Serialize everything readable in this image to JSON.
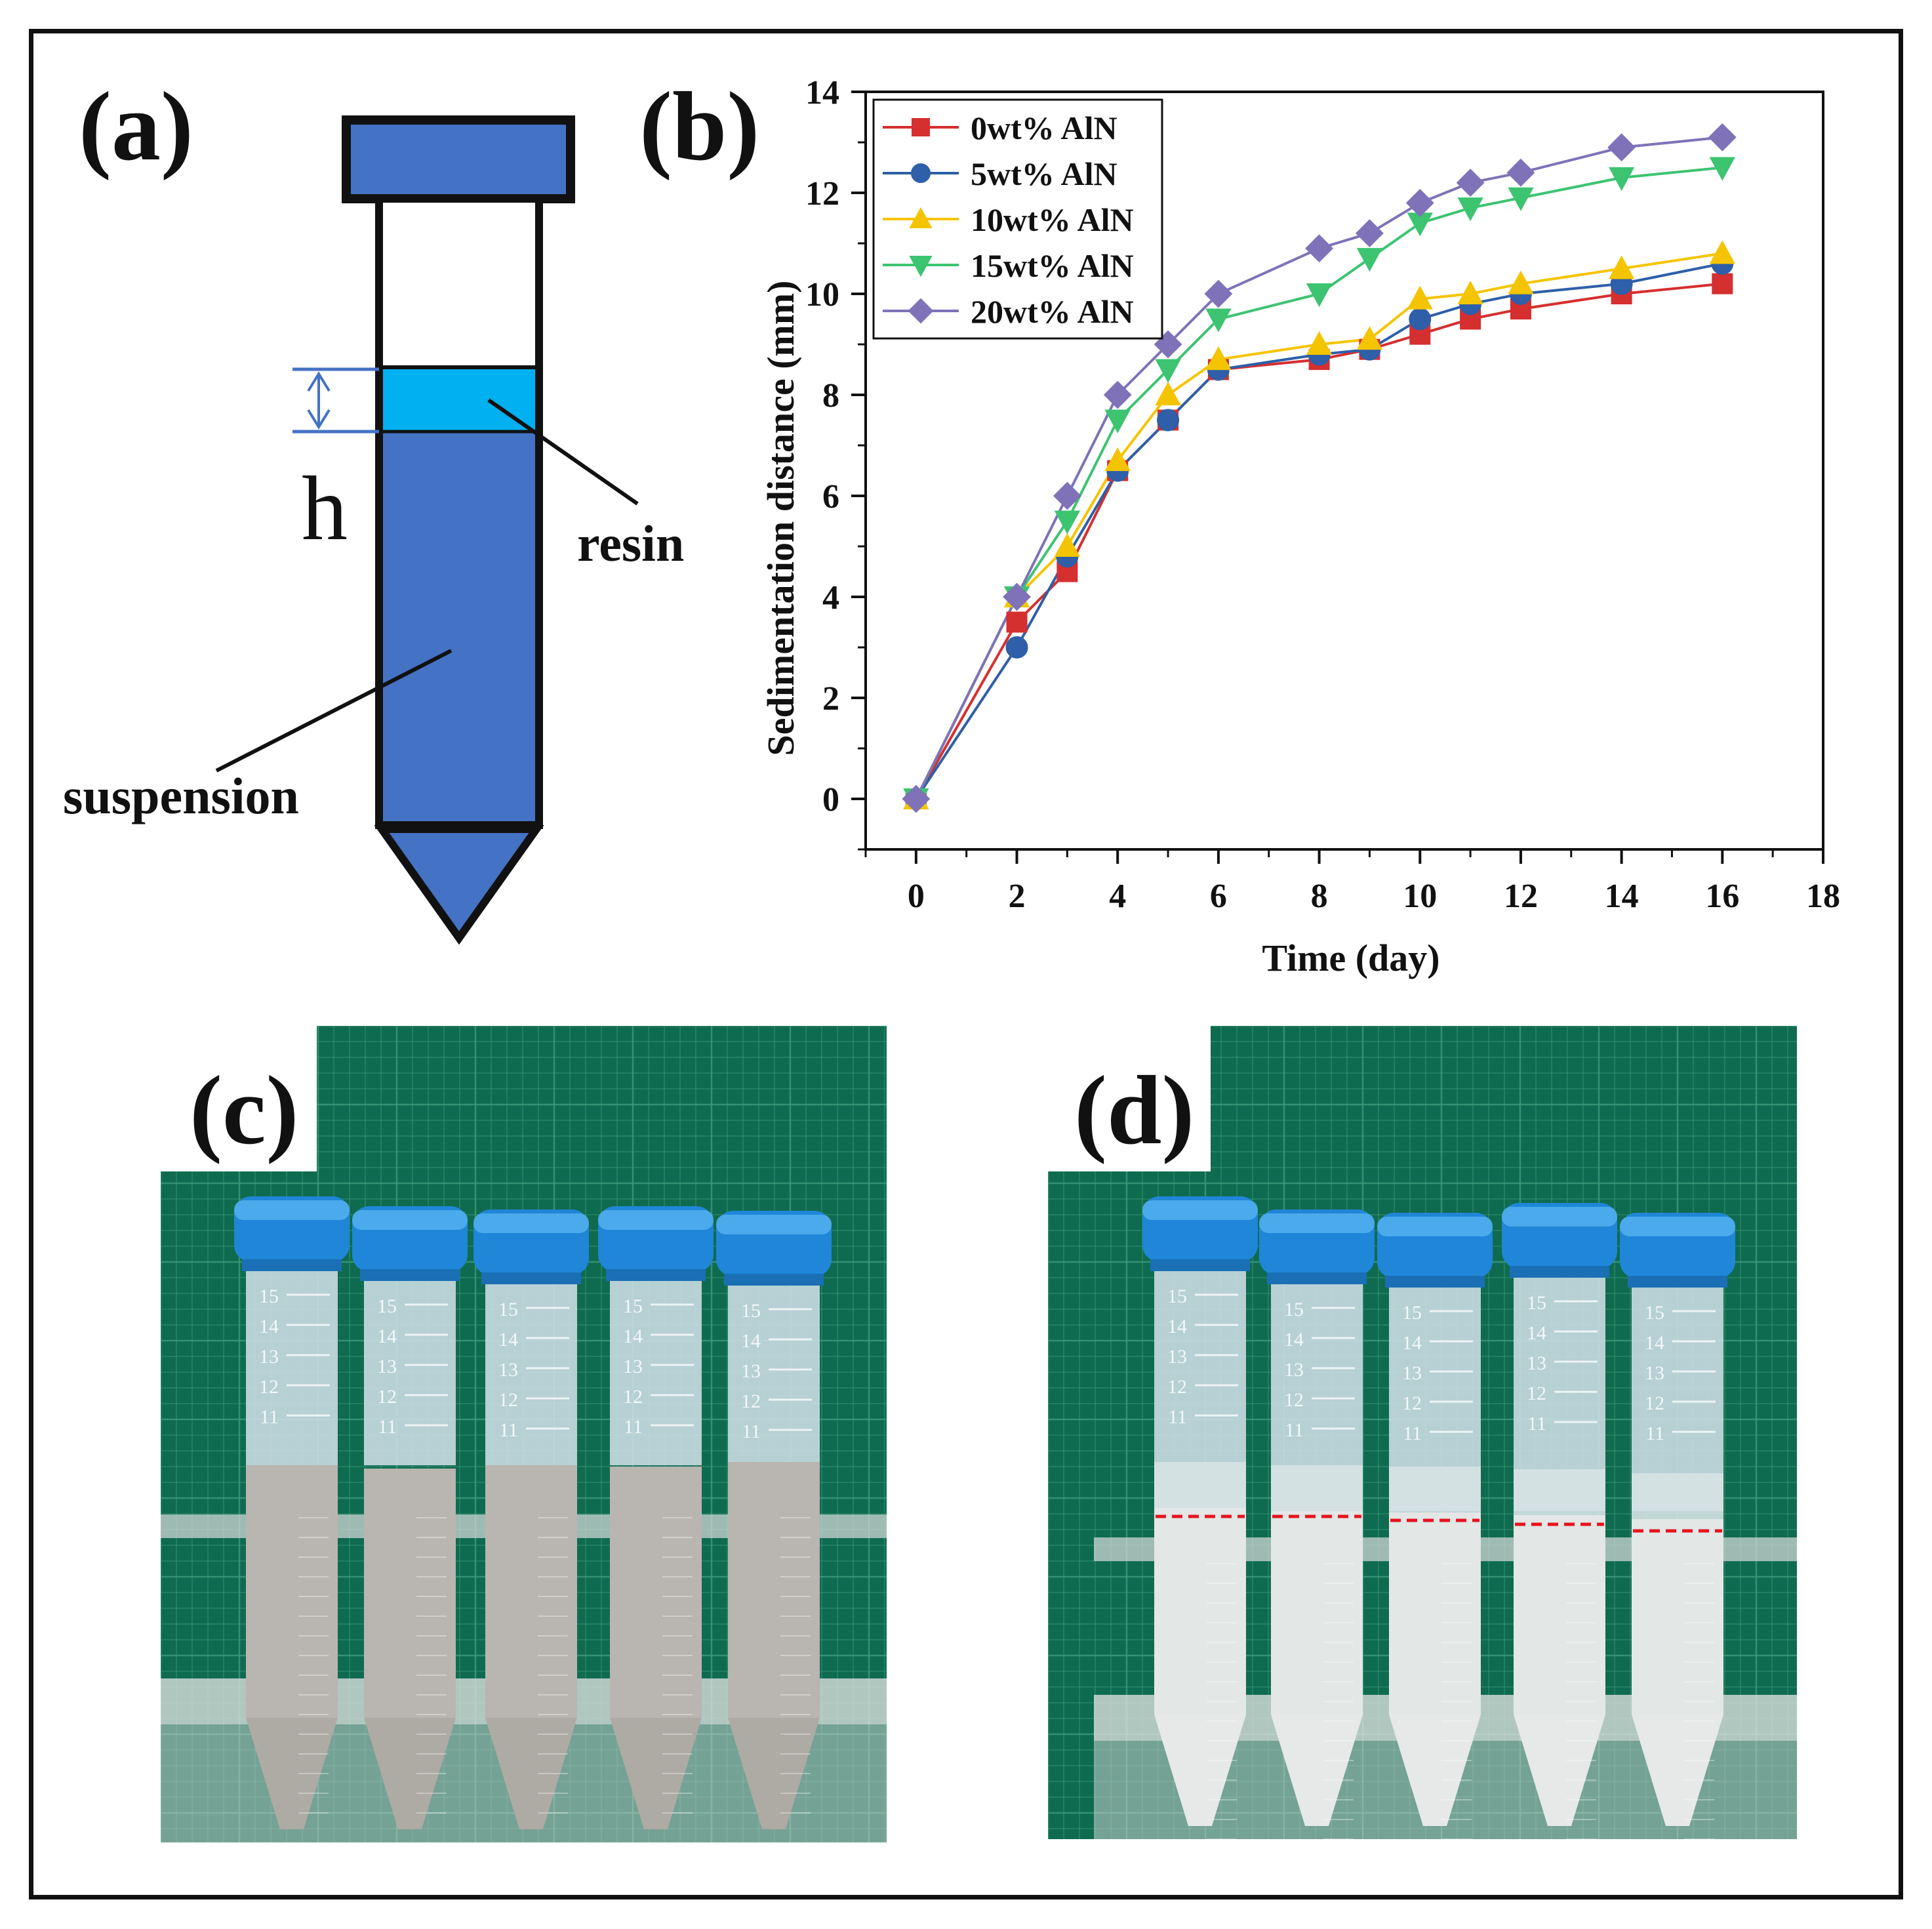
{
  "panel_a": {
    "label": "(a)",
    "h_label": "h",
    "resin_label": "resin",
    "suspension_label": "suspension",
    "colors": {
      "tube": "#4472c4",
      "resin": "#00b0f0",
      "arrow": "#4472c4"
    }
  },
  "panel_b": {
    "label": "(b)"
  },
  "chart_data": {
    "type": "line",
    "xlabel": "Time (day)",
    "ylabel": "Sedimentation distance (mm)",
    "xlim": [
      -1,
      18
    ],
    "ylim": [
      -1,
      14
    ],
    "xticks": [
      0,
      2,
      4,
      6,
      8,
      10,
      12,
      14,
      16,
      18
    ],
    "yticks": [
      0,
      2,
      4,
      6,
      8,
      10,
      12,
      14
    ],
    "legend_position": "top-left",
    "x": [
      0,
      2,
      3,
      4,
      5,
      6,
      8,
      9,
      10,
      11,
      12,
      14,
      16
    ],
    "series": [
      {
        "name": "0wt% AlN",
        "color": "#d62f2f",
        "marker": "square",
        "values": [
          0,
          3.5,
          4.5,
          6.5,
          7.5,
          8.5,
          8.7,
          8.9,
          9.2,
          9.5,
          9.7,
          10.0,
          10.2
        ]
      },
      {
        "name": "5wt% AlN",
        "color": "#2e5fa8",
        "marker": "circle",
        "values": [
          0,
          3.0,
          4.8,
          6.5,
          7.5,
          8.5,
          8.8,
          8.9,
          9.5,
          9.8,
          10.0,
          10.2,
          10.6
        ]
      },
      {
        "name": "10wt% AlN",
        "color": "#f5c400",
        "marker": "triangle-up",
        "values": [
          0,
          4.0,
          5.0,
          6.7,
          8.0,
          8.7,
          9.0,
          9.1,
          9.9,
          10.0,
          10.2,
          10.5,
          10.8
        ]
      },
      {
        "name": "15wt% AlN",
        "color": "#3cc471",
        "marker": "triangle-down",
        "values": [
          0,
          4.0,
          5.5,
          7.5,
          8.5,
          9.5,
          10.0,
          10.7,
          11.4,
          11.7,
          11.9,
          12.3,
          12.5
        ]
      },
      {
        "name": "20wt% AlN",
        "color": "#7f72b8",
        "marker": "diamond",
        "values": [
          0,
          4.0,
          6.0,
          8.0,
          9.0,
          10.0,
          10.9,
          11.2,
          11.8,
          12.2,
          12.4,
          12.9,
          13.1
        ]
      }
    ]
  },
  "panel_c": {
    "label": "(c)",
    "tube_count": 5,
    "grad_labels": [
      "15",
      "14",
      "13",
      "12",
      "11"
    ]
  },
  "panel_d": {
    "label": "(d)",
    "tube_count": 5,
    "grad_labels": [
      "15",
      "14",
      "13",
      "12",
      "11"
    ],
    "line_color": "#e8141e"
  }
}
